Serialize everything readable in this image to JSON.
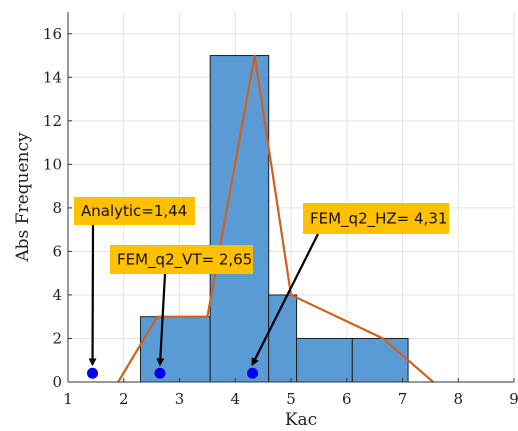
{
  "chart_data": {
    "type": "bar",
    "xlabel": "Kac",
    "ylabel": "Abs Frequency",
    "xlim": [
      1,
      9
    ],
    "ylim": [
      0,
      17
    ],
    "xticks": [
      1,
      2,
      3,
      4,
      5,
      6,
      7,
      8,
      9
    ],
    "yticks": [
      0,
      2,
      4,
      6,
      8,
      10,
      12,
      14,
      16
    ],
    "grid": true,
    "bins": [
      {
        "x0": 2.3,
        "x1": 3.55,
        "count": 3
      },
      {
        "x0": 3.55,
        "x1": 4.6,
        "count": 15
      },
      {
        "x0": 4.6,
        "x1": 5.1,
        "count": 4
      },
      {
        "x0": 5.1,
        "x1": 6.1,
        "count": 2
      },
      {
        "x0": 6.1,
        "x1": 7.1,
        "count": 2
      }
    ],
    "bar_color": "#5b9bd5",
    "line": {
      "color": "#d0601f",
      "x": [
        1.9,
        2.6,
        3.5,
        4.35,
        5.0,
        6.65,
        7.55
      ],
      "y": [
        0,
        3,
        3,
        15,
        4,
        2,
        0
      ]
    },
    "points": {
      "color": "#0000ee",
      "x": [
        1.44,
        2.65,
        4.31
      ],
      "y": [
        0.4,
        0.4,
        0.4
      ]
    },
    "annotations": [
      {
        "text": "Analytic=1,44",
        "value": 1.44
      },
      {
        "text": "FEM_q2_VT= 2,65",
        "value": 2.65
      },
      {
        "text": "FEM_q2_HZ= 4,31",
        "value": 4.31
      }
    ],
    "annotation_color": "#ffc000"
  }
}
